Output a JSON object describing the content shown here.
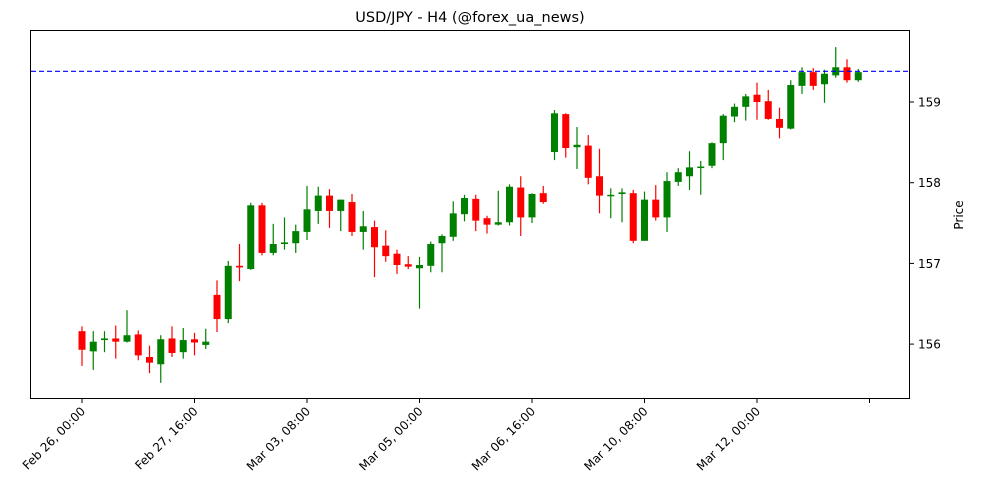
{
  "chart_data": {
    "type": "candlestick",
    "title": "USD/JPY - H4 (@forex_ua_news)",
    "xlabel": "",
    "ylabel": "Price",
    "y_axis_position": "right",
    "ylim": [
      155.33,
      159.88
    ],
    "yticks": [
      156,
      157,
      158,
      159
    ],
    "grid": false,
    "legend": null,
    "colors": {
      "up": "#008000",
      "down": "#ff0000",
      "hline": "#0000ff"
    },
    "hline": {
      "value": 159.38,
      "style": "dashed",
      "color": "#0000ff"
    },
    "xticks": [
      {
        "index": 0,
        "label": "Feb 26, 00:00"
      },
      {
        "index": 10,
        "label": "Feb 27, 16:00"
      },
      {
        "index": 20,
        "label": "Mar 03, 08:00"
      },
      {
        "index": 30,
        "label": "Mar 05, 00:00"
      },
      {
        "index": 40,
        "label": "Mar 06, 16:00"
      },
      {
        "index": 50,
        "label": "Mar 10, 08:00"
      },
      {
        "index": 60,
        "label": "Mar 12, 00:00"
      },
      {
        "index": 70,
        "label": ""
      }
    ],
    "candles": [
      {
        "o": 156.16,
        "h": 156.22,
        "l": 155.73,
        "c": 155.93
      },
      {
        "o": 155.91,
        "h": 156.16,
        "l": 155.68,
        "c": 156.03
      },
      {
        "o": 156.05,
        "h": 156.16,
        "l": 155.9,
        "c": 156.07
      },
      {
        "o": 156.07,
        "h": 156.23,
        "l": 155.82,
        "c": 156.03
      },
      {
        "o": 156.03,
        "h": 156.42,
        "l": 156.02,
        "c": 156.11
      },
      {
        "o": 156.12,
        "h": 156.17,
        "l": 155.8,
        "c": 155.86
      },
      {
        "o": 155.84,
        "h": 155.98,
        "l": 155.64,
        "c": 155.77
      },
      {
        "o": 155.75,
        "h": 156.11,
        "l": 155.52,
        "c": 156.06
      },
      {
        "o": 156.07,
        "h": 156.22,
        "l": 155.84,
        "c": 155.89
      },
      {
        "o": 155.9,
        "h": 156.2,
        "l": 155.82,
        "c": 156.05
      },
      {
        "o": 156.06,
        "h": 156.14,
        "l": 155.86,
        "c": 156.02
      },
      {
        "o": 155.99,
        "h": 156.19,
        "l": 155.94,
        "c": 156.03
      },
      {
        "o": 156.61,
        "h": 156.79,
        "l": 156.15,
        "c": 156.31
      },
      {
        "o": 156.31,
        "h": 157.03,
        "l": 156.26,
        "c": 156.97
      },
      {
        "o": 156.97,
        "h": 157.24,
        "l": 156.78,
        "c": 156.95
      },
      {
        "o": 156.93,
        "h": 157.75,
        "l": 156.92,
        "c": 157.72
      },
      {
        "o": 157.72,
        "h": 157.75,
        "l": 157.1,
        "c": 157.13
      },
      {
        "o": 157.13,
        "h": 157.49,
        "l": 157.1,
        "c": 157.24
      },
      {
        "o": 157.24,
        "h": 157.57,
        "l": 157.17,
        "c": 157.26
      },
      {
        "o": 157.25,
        "h": 157.48,
        "l": 157.13,
        "c": 157.4
      },
      {
        "o": 157.39,
        "h": 157.96,
        "l": 157.29,
        "c": 157.67
      },
      {
        "o": 157.65,
        "h": 157.95,
        "l": 157.49,
        "c": 157.84
      },
      {
        "o": 157.84,
        "h": 157.92,
        "l": 157.44,
        "c": 157.65
      },
      {
        "o": 157.65,
        "h": 157.79,
        "l": 157.4,
        "c": 157.79
      },
      {
        "o": 157.76,
        "h": 157.86,
        "l": 157.34,
        "c": 157.39
      },
      {
        "o": 157.39,
        "h": 157.65,
        "l": 157.17,
        "c": 157.46
      },
      {
        "o": 157.45,
        "h": 157.53,
        "l": 156.83,
        "c": 157.2
      },
      {
        "o": 157.22,
        "h": 157.41,
        "l": 157.02,
        "c": 157.09
      },
      {
        "o": 157.12,
        "h": 157.17,
        "l": 156.87,
        "c": 156.98
      },
      {
        "o": 156.99,
        "h": 157.09,
        "l": 156.93,
        "c": 156.96
      },
      {
        "o": 156.94,
        "h": 157.08,
        "l": 156.44,
        "c": 156.98
      },
      {
        "o": 156.97,
        "h": 157.27,
        "l": 156.89,
        "c": 157.24
      },
      {
        "o": 157.25,
        "h": 157.36,
        "l": 156.89,
        "c": 157.34
      },
      {
        "o": 157.33,
        "h": 157.77,
        "l": 157.28,
        "c": 157.62
      },
      {
        "o": 157.61,
        "h": 157.85,
        "l": 157.52,
        "c": 157.81
      },
      {
        "o": 157.8,
        "h": 157.85,
        "l": 157.4,
        "c": 157.53
      },
      {
        "o": 157.56,
        "h": 157.59,
        "l": 157.37,
        "c": 157.48
      },
      {
        "o": 157.48,
        "h": 157.9,
        "l": 157.47,
        "c": 157.51
      },
      {
        "o": 157.51,
        "h": 157.98,
        "l": 157.47,
        "c": 157.95
      },
      {
        "o": 157.94,
        "h": 158.08,
        "l": 157.34,
        "c": 157.57
      },
      {
        "o": 157.57,
        "h": 157.87,
        "l": 157.5,
        "c": 157.86
      },
      {
        "o": 157.87,
        "h": 157.96,
        "l": 157.74,
        "c": 157.76
      },
      {
        "o": 158.38,
        "h": 158.9,
        "l": 158.28,
        "c": 158.86
      },
      {
        "o": 158.85,
        "h": 158.86,
        "l": 158.31,
        "c": 158.43
      },
      {
        "o": 158.44,
        "h": 158.69,
        "l": 158.17,
        "c": 158.47
      },
      {
        "o": 158.46,
        "h": 158.59,
        "l": 157.98,
        "c": 158.06
      },
      {
        "o": 158.08,
        "h": 158.42,
        "l": 157.62,
        "c": 157.84
      },
      {
        "o": 157.84,
        "h": 157.93,
        "l": 157.56,
        "c": 157.85
      },
      {
        "o": 157.86,
        "h": 157.93,
        "l": 157.51,
        "c": 157.88
      },
      {
        "o": 157.87,
        "h": 157.91,
        "l": 157.25,
        "c": 157.28
      },
      {
        "o": 157.28,
        "h": 157.89,
        "l": 157.28,
        "c": 157.79
      },
      {
        "o": 157.79,
        "h": 157.97,
        "l": 157.53,
        "c": 157.57
      },
      {
        "o": 157.57,
        "h": 158.13,
        "l": 157.39,
        "c": 158.02
      },
      {
        "o": 158.01,
        "h": 158.18,
        "l": 157.96,
        "c": 158.13
      },
      {
        "o": 158.08,
        "h": 158.39,
        "l": 157.91,
        "c": 158.19
      },
      {
        "o": 158.19,
        "h": 158.27,
        "l": 157.85,
        "c": 158.2
      },
      {
        "o": 158.21,
        "h": 158.5,
        "l": 158.18,
        "c": 158.49
      },
      {
        "o": 158.49,
        "h": 158.85,
        "l": 158.28,
        "c": 158.83
      },
      {
        "o": 158.82,
        "h": 158.98,
        "l": 158.75,
        "c": 158.94
      },
      {
        "o": 158.94,
        "h": 159.1,
        "l": 158.77,
        "c": 159.07
      },
      {
        "o": 159.09,
        "h": 159.24,
        "l": 158.78,
        "c": 159.0
      },
      {
        "o": 159.01,
        "h": 159.15,
        "l": 158.78,
        "c": 158.79
      },
      {
        "o": 158.79,
        "h": 158.93,
        "l": 158.55,
        "c": 158.68
      },
      {
        "o": 158.67,
        "h": 159.27,
        "l": 158.66,
        "c": 159.21
      },
      {
        "o": 159.2,
        "h": 159.43,
        "l": 159.1,
        "c": 159.37
      },
      {
        "o": 159.37,
        "h": 159.42,
        "l": 159.15,
        "c": 159.2
      },
      {
        "o": 159.22,
        "h": 159.4,
        "l": 158.99,
        "c": 159.35
      },
      {
        "o": 159.33,
        "h": 159.68,
        "l": 159.3,
        "c": 159.43
      },
      {
        "o": 159.43,
        "h": 159.53,
        "l": 159.24,
        "c": 159.27
      },
      {
        "o": 159.27,
        "h": 159.41,
        "l": 159.25,
        "c": 159.37
      }
    ]
  }
}
